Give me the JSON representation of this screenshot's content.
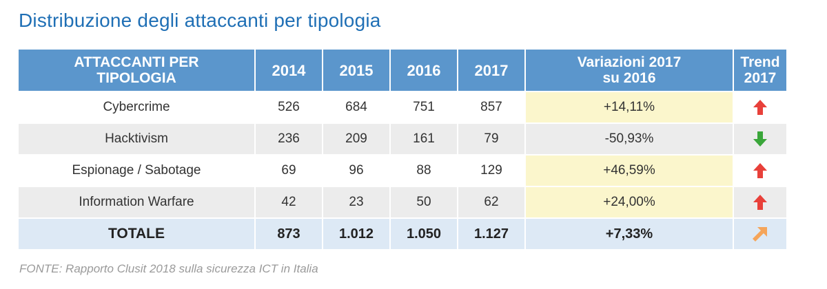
{
  "title": "Distribuzione degli attaccanti per tipologia",
  "source": "FONTE: Rapporto Clusit 2018 sulla sicurezza ICT in Italia",
  "chart_data": {
    "type": "table",
    "title": "Distribuzione degli attaccanti per tipologia",
    "columns": [
      "ATTACCANTI PER TIPOLOGIA",
      "2014",
      "2015",
      "2016",
      "2017",
      "Variazioni 2017 su 2016",
      "Trend 2017"
    ],
    "column_labels": {
      "category": [
        "ATTACCANTI PER",
        "TIPOLOGIA"
      ],
      "years": [
        "2014",
        "2015",
        "2016",
        "2017"
      ],
      "variation": [
        "Variazioni 2017",
        "su 2016"
      ],
      "trend": [
        "Trend",
        "2017"
      ]
    },
    "rows": [
      {
        "label": "Cybercrime",
        "values": [
          "526",
          "684",
          "751",
          "857"
        ],
        "variation": "+14,11%",
        "trend": "up",
        "highlight": true
      },
      {
        "label": "Hacktivism",
        "values": [
          "236",
          "209",
          "161",
          "79"
        ],
        "variation": "-50,93%",
        "trend": "down",
        "highlight": false
      },
      {
        "label": "Espionage / Sabotage",
        "values": [
          "69",
          "96",
          "88",
          "129"
        ],
        "variation": "+46,59%",
        "trend": "up",
        "highlight": true
      },
      {
        "label": "Information Warfare",
        "values": [
          "42",
          "23",
          "50",
          "62"
        ],
        "variation": "+24,00%",
        "trend": "up",
        "highlight": true
      }
    ],
    "total": {
      "label": "TOTALE",
      "values": [
        "873",
        "1.012",
        "1.050",
        "1.127"
      ],
      "variation": "+7,33%",
      "trend": "up-right"
    },
    "colors": {
      "header": "#5b96cc",
      "highlight": "#fbf6cc",
      "total_row": "#dde9f5",
      "trend_up": "#e8403a",
      "trend_down": "#3aa63a",
      "trend_up_right": "#f5a55a"
    }
  }
}
